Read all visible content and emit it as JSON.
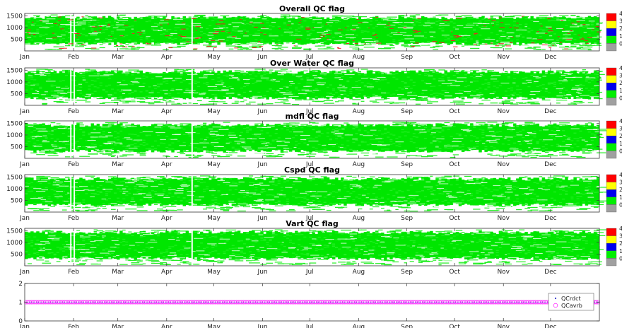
{
  "chart_data": [
    {
      "type": "heatmap",
      "title": "Overall QC flag",
      "x_tick_labels": [
        "Jan",
        "Feb",
        "Mar",
        "Apr",
        "May",
        "Jun",
        "Jul",
        "Aug",
        "Sep",
        "Oct",
        "Nov",
        "Dec"
      ],
      "yticks": [
        500,
        1000,
        1500
      ],
      "ylim": [
        0,
        1600
      ],
      "colorbar": {
        "ticks": [
          "4",
          "3",
          "2",
          "1",
          "0"
        ],
        "colors": [
          "#ff0000",
          "#ffff00",
          "#0000ee",
          "#00ee00",
          "#a0a0a0"
        ]
      },
      "red_density": 0.22
    },
    {
      "type": "heatmap",
      "title": "Over Water QC flag",
      "x_tick_labels": [
        "Jan",
        "Feb",
        "Mar",
        "Apr",
        "May",
        "Jun",
        "Jul",
        "Aug",
        "Sep",
        "Oct",
        "Nov",
        "Dec"
      ],
      "yticks": [
        500,
        1000,
        1500
      ],
      "ylim": [
        0,
        1600
      ],
      "colorbar": {
        "ticks": [
          "4",
          "3",
          "2",
          "1",
          "0"
        ],
        "colors": [
          "#ff0000",
          "#ffff00",
          "#0000ee",
          "#00ee00",
          "#a0a0a0"
        ]
      },
      "red_density": 0.0
    },
    {
      "type": "heatmap",
      "title": "mdfl QC flag",
      "x_tick_labels": [
        "Jan",
        "Feb",
        "Mar",
        "Apr",
        "May",
        "Jun",
        "Jul",
        "Aug",
        "Sep",
        "Oct",
        "Nov",
        "Dec"
      ],
      "yticks": [
        500,
        1000,
        1500
      ],
      "ylim": [
        0,
        1600
      ],
      "colorbar": {
        "ticks": [
          "4",
          "3",
          "2",
          "1",
          "0"
        ],
        "colors": [
          "#ff0000",
          "#ffff00",
          "#0000ee",
          "#00ee00",
          "#a0a0a0"
        ]
      },
      "red_density": 0.0
    },
    {
      "type": "heatmap",
      "title": "Cspd QC flag",
      "x_tick_labels": [
        "Jan",
        "Feb",
        "Mar",
        "Apr",
        "May",
        "Jun",
        "Jul",
        "Aug",
        "Sep",
        "Oct",
        "Nov",
        "Dec"
      ],
      "yticks": [
        500,
        1000,
        1500
      ],
      "ylim": [
        0,
        1600
      ],
      "colorbar": {
        "ticks": [
          "4",
          "3",
          "2",
          "1",
          "0"
        ],
        "colors": [
          "#ff0000",
          "#ffff00",
          "#0000ee",
          "#00ee00",
          "#a0a0a0"
        ]
      },
      "red_density": 0.0
    },
    {
      "type": "heatmap",
      "title": "Vart QC flag",
      "x_tick_labels": [
        "Jan",
        "Feb",
        "Mar",
        "Apr",
        "May",
        "Jun",
        "Jul",
        "Aug",
        "Sep",
        "Oct",
        "Nov",
        "Dec"
      ],
      "yticks": [
        500,
        1000,
        1500
      ],
      "ylim": [
        0,
        1600
      ],
      "colorbar": {
        "ticks": [
          "4",
          "3",
          "2",
          "1",
          "0"
        ],
        "colors": [
          "#ff0000",
          "#ffff00",
          "#0000ee",
          "#00ee00",
          "#a0a0a0"
        ]
      },
      "red_density": 0.0
    },
    {
      "type": "scatter",
      "title": "",
      "x_tick_labels": [
        "Jan",
        "Feb",
        "Mar",
        "Apr",
        "May",
        "Jun",
        "Jul",
        "Aug",
        "Sep",
        "Oct",
        "Nov",
        "Dec"
      ],
      "yticks": [
        0,
        1,
        2
      ],
      "ylim": [
        0,
        2
      ],
      "series": [
        {
          "name": "QCrdct",
          "marker": "dot",
          "color": "#3333cc",
          "value": 1
        },
        {
          "name": "QCavrb",
          "marker": "circle",
          "color": "#ff33ff",
          "value": 1
        }
      ],
      "legend": "right"
    }
  ]
}
